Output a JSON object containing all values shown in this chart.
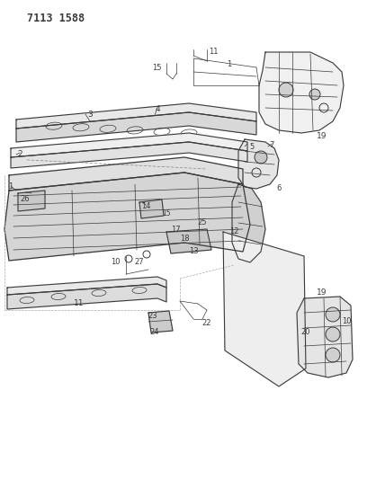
{
  "title": "7113 1588",
  "bg_color": "#ffffff",
  "line_color": "#3a3a3a",
  "fig_width": 4.28,
  "fig_height": 5.33,
  "dpi": 100
}
